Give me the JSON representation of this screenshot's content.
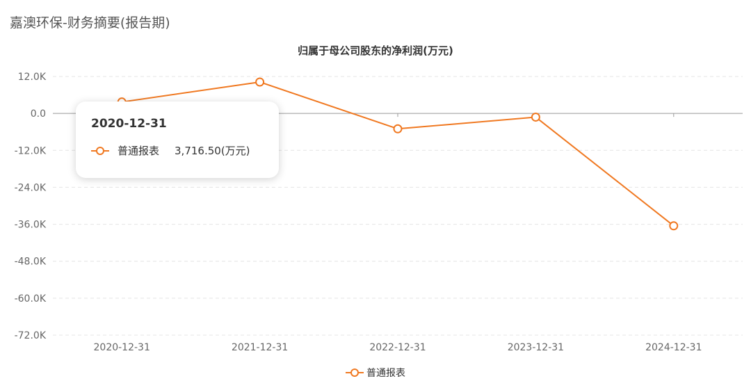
{
  "page": {
    "title": "嘉澳环保-财务摘要(报告期)"
  },
  "tooltip": {
    "date": "2020-12-31",
    "series": "普通报表",
    "value": "3,716.50(万元)"
  },
  "colors": {
    "series": "#f07820",
    "axis": "#999999",
    "grid": "#e4e4e4",
    "text": "#666666"
  },
  "chart_data": {
    "type": "line",
    "title": "归属于母公司股东的净利润(万元)",
    "xlabel": "",
    "ylabel": "",
    "categories": [
      "2020-12-31",
      "2021-12-31",
      "2022-12-31",
      "2023-12-31",
      "2024-12-31"
    ],
    "series": [
      {
        "name": "普通报表",
        "values": [
          3716.5,
          10200,
          -5000,
          -1200,
          -36500
        ]
      }
    ],
    "ylim": [
      -72000,
      12000
    ],
    "yticks": [
      12000,
      0,
      -12000,
      -24000,
      -36000,
      -48000,
      -60000,
      -72000
    ],
    "ytick_labels": [
      "12.0K",
      "0.0",
      "-12.0K",
      "-24.0K",
      "-36.0K",
      "-48.0K",
      "-60.0K",
      "-72.0K"
    ],
    "grid": true,
    "legend": "bottom-center"
  }
}
